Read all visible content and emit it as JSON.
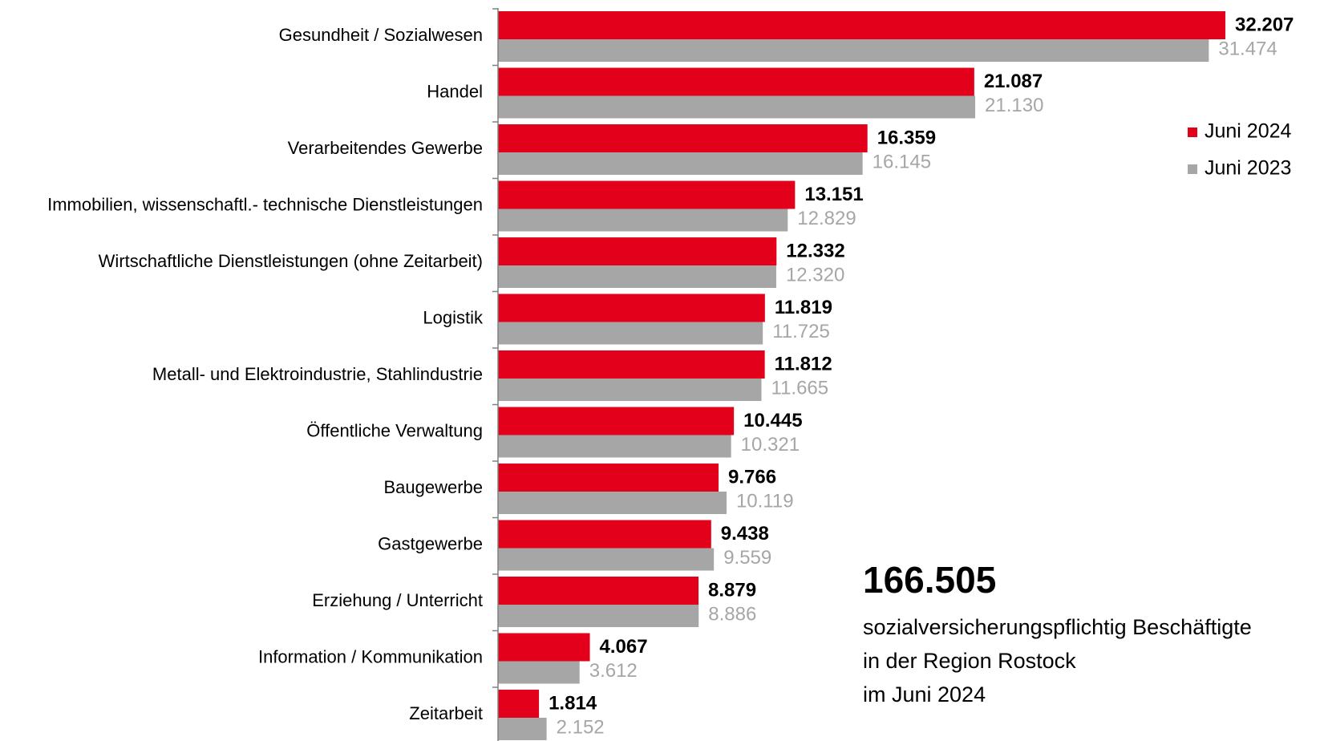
{
  "chart_data": {
    "type": "bar",
    "orientation": "horizontal",
    "categories": [
      "Gesundheit / Sozialwesen",
      "Handel",
      "Verarbeitendes Gewerbe",
      "Immobilien, wissenschaftl.- technische Dienstleistungen",
      "Wirtschaftliche Dienstleistungen (ohne Zeitarbeit)",
      "Logistik",
      "Metall- und Elektroindustrie, Stahlindustrie",
      "Öffentliche Verwaltung",
      "Baugewerbe",
      "Gastgewerbe",
      "Erziehung / Unterricht",
      "Information / Kommunikation",
      "Zeitarbeit"
    ],
    "series": [
      {
        "name": "Juni 2024",
        "color": "#e2001a",
        "values": [
          32207,
          21087,
          16359,
          13151,
          12332,
          11819,
          11812,
          10445,
          9766,
          9438,
          8879,
          4067,
          1814
        ],
        "value_labels": [
          "32.207",
          "21.087",
          "16.359",
          "13.151",
          "12.332",
          "11.819",
          "11.812",
          "10.445",
          "9.766",
          "9.438",
          "8.879",
          "4.067",
          "1.814"
        ]
      },
      {
        "name": "Juni 2023",
        "color": "#a6a6a6",
        "values": [
          31474,
          21130,
          16145,
          12829,
          12320,
          11725,
          11665,
          10321,
          10119,
          9559,
          8886,
          3612,
          2152
        ],
        "value_labels": [
          "31.474",
          "21.130",
          "16.145",
          "12.829",
          "12.320",
          "11.725",
          "11.665",
          "10.321",
          "10.119",
          "9.559",
          "8.886",
          "3.612",
          "2.152"
        ]
      }
    ],
    "legend": "upper right",
    "annotations": [
      "166.505",
      "sozialversicherungspflichtig Beschäftigte",
      "in der Region Rostock",
      "im Juni 2024"
    ]
  }
}
